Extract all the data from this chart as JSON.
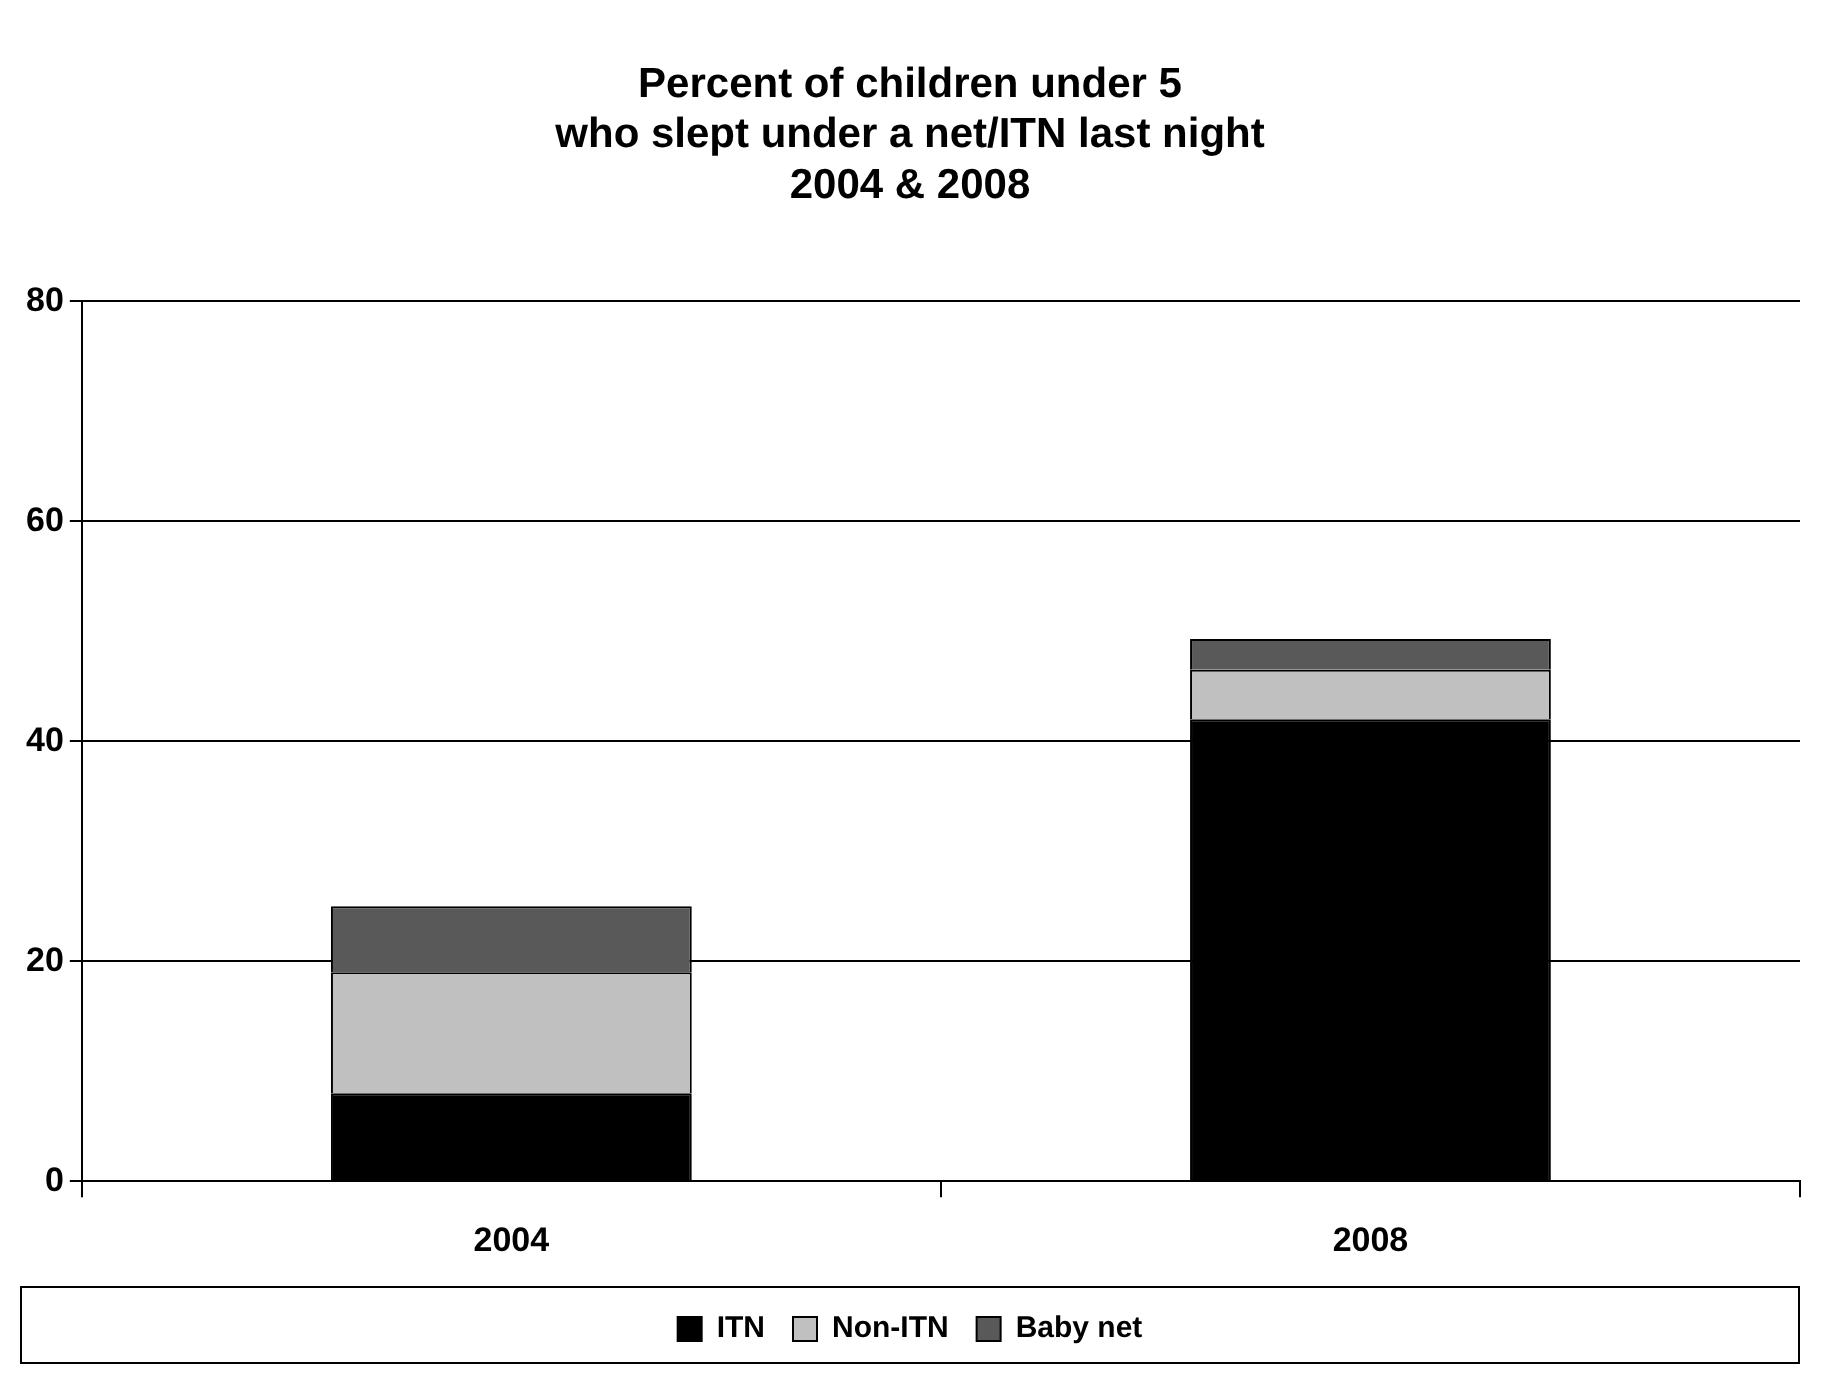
{
  "chart_data": {
    "type": "bar",
    "title": "Percent of children under 5\nwho slept under a net/ITN last night\n2004 & 2008",
    "categories": [
      "2004",
      "2008"
    ],
    "stacked": true,
    "series": [
      {
        "name": "ITN",
        "color": "#000000",
        "values": [
          8,
          42
        ]
      },
      {
        "name": "Non-ITN",
        "color": "#c0c0c0",
        "values": [
          11,
          4.5
        ]
      },
      {
        "name": "Baby net",
        "color": "#595959",
        "values": [
          6,
          2.8
        ]
      }
    ],
    "ylim": [
      0,
      80
    ],
    "yticks": [
      0,
      20,
      40,
      60,
      80
    ],
    "grid": "y",
    "legend": "bottom"
  }
}
